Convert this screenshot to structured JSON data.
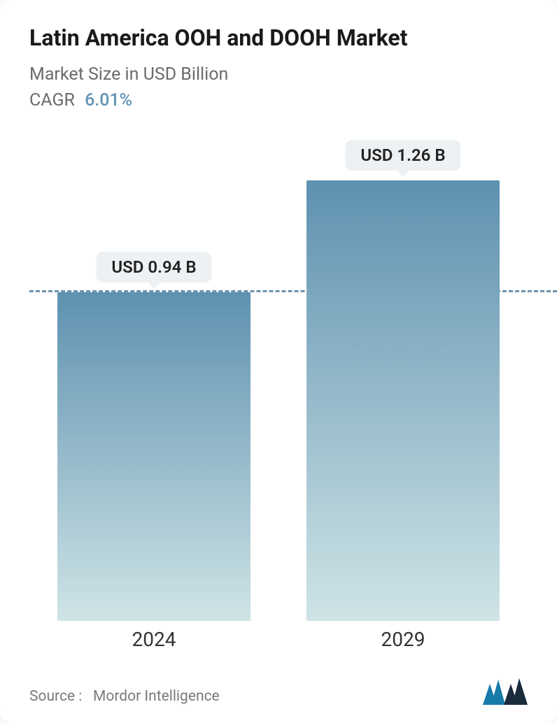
{
  "header": {
    "title": "Latin America OOH and DOOH Market",
    "subtitle": "Market Size in USD Billion",
    "cagr_label": "CAGR",
    "cagr_value": "6.01%"
  },
  "chart": {
    "type": "bar",
    "background_color": "#ffffff",
    "dashed_line_color": "#6e93ac",
    "dashed_line_at_value": 0.94,
    "ymax": 1.4,
    "bar_gradient_top": "#5e91b0",
    "bar_gradient_bottom": "#cfe4e6",
    "pill_bg": "#eef1f3",
    "pill_text_color": "#222222",
    "xlabel_color": "#333333",
    "xlabel_fontsize": 28,
    "value_fontsize": 24,
    "bars": [
      {
        "year": "2024",
        "value": 0.94,
        "label": "USD 0.94 B"
      },
      {
        "year": "2029",
        "value": 1.26,
        "label": "USD 1.26 B"
      }
    ]
  },
  "footer": {
    "source_prefix": "Source :",
    "source_name": "Mordor Intelligence"
  },
  "logo": {
    "left_color": "#167ba9",
    "right_color": "#1a2b3c"
  }
}
